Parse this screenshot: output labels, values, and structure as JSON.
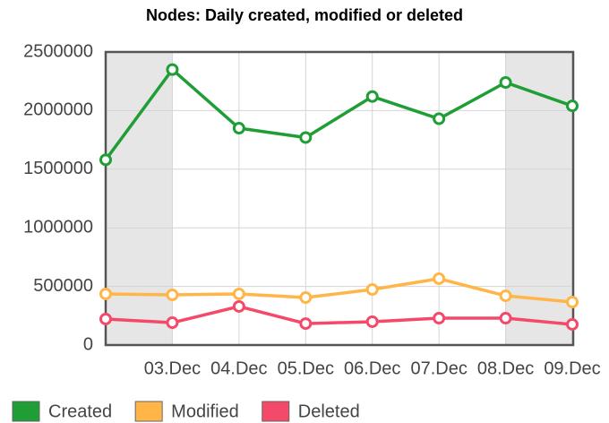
{
  "chart_data": {
    "type": "line",
    "title": "Nodes: Daily created, modified or deleted",
    "categories": [
      null,
      "03.Dec",
      "04.Dec",
      "05.Dec",
      "06.Dec",
      "07.Dec",
      "08.Dec",
      "09.Dec"
    ],
    "series": [
      {
        "name": "Created",
        "color": "#1f9e35",
        "values": [
          1580000,
          2350000,
          1850000,
          1770000,
          2120000,
          1930000,
          2240000,
          2040000
        ]
      },
      {
        "name": "Modified",
        "color": "#ffb547",
        "values": [
          436000,
          428000,
          436000,
          405000,
          474000,
          566000,
          420000,
          367000
        ]
      },
      {
        "name": "Deleted",
        "color": "#f5496a",
        "values": [
          222000,
          191000,
          329000,
          183000,
          199000,
          229000,
          229000,
          176000
        ]
      }
    ],
    "ylim": [
      0,
      2500000
    ],
    "yticks": [
      0,
      500000,
      1000000,
      1500000,
      2000000,
      2500000
    ],
    "grid": true,
    "legend": "bottom"
  }
}
